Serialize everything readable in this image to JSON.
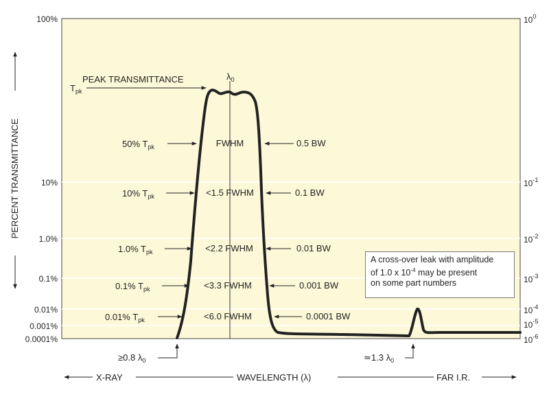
{
  "diagram": {
    "colors": {
      "plot_background": "#fdf8d8",
      "curve": "#222222",
      "gridline": "#ffffff",
      "text": "#222222"
    },
    "left_ticks": [
      "100%",
      "10%",
      "1.0%",
      "0.1%",
      "0.01%",
      "0.001%",
      "0.0001%"
    ],
    "right_ticks": [
      {
        "base": "10",
        "exp": "0"
      },
      {
        "base": "10",
        "exp": "-1"
      },
      {
        "base": "10",
        "exp": "-2"
      },
      {
        "base": "10",
        "exp": "-3"
      },
      {
        "base": "10",
        "exp": "-4"
      },
      {
        "base": "10",
        "exp": "-5"
      },
      {
        "base": "10",
        "exp": "-6"
      }
    ],
    "y_axis_label": "PERCENT TRANSMITTANCE",
    "peak": {
      "label": "PEAK TRANSMITTANCE",
      "tpk": "T",
      "tpk_sub": "pk"
    },
    "lambda0": {
      "symbol": "λ",
      "sub": "0"
    },
    "levels": [
      {
        "left": "50% T",
        "left_sub": "pk",
        "center": "FWHM",
        "right": "0.5 BW"
      },
      {
        "left": "10% T",
        "left_sub": "pk",
        "center": "<1.5 FWHM",
        "right": "0.1 BW"
      },
      {
        "left": "1.0% T",
        "left_sub": "pk",
        "center": "<2.2 FWHM",
        "right": "0.01 BW"
      },
      {
        "left": "0.1% T",
        "left_sub": "pk",
        "center": "<3.3 FWHM",
        "right": "0.001 BW"
      },
      {
        "left": "0.01% T",
        "left_sub": "pk",
        "center": "<6.0 FWHM",
        "right": "0.0001 BW"
      }
    ],
    "bottom_left_marker": {
      "prefix": "≥0.8 λ",
      "sub": "0"
    },
    "bottom_right_marker": {
      "prefix": "≃1.3 λ",
      "sub": "0"
    },
    "x_axis": {
      "left": "X-RAY",
      "center": "WAVELENGTH (λ)",
      "right": "FAR I.R."
    },
    "note": {
      "line1": "A cross-over leak with amplitude",
      "line2_pre": "of 1.0 x 10",
      "line2_exp": "-4",
      "line2_post": " may be present",
      "line3": "on some part numbers"
    }
  }
}
